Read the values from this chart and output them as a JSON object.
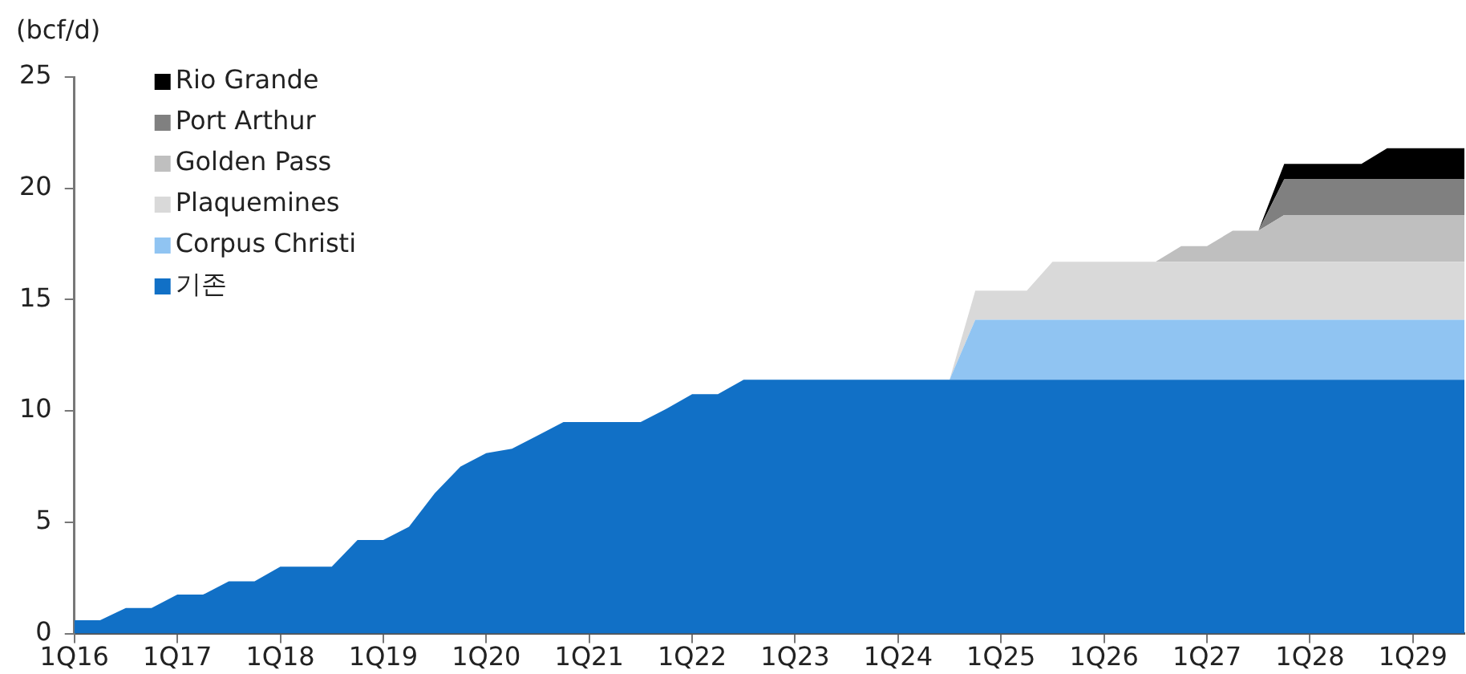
{
  "chart_data": {
    "type": "area",
    "ylabel": "(bcf/d)",
    "stacked": true,
    "legend": "top left",
    "grid": false,
    "ylim": [
      0,
      25
    ],
    "yticks": [
      0,
      5,
      10,
      15,
      20,
      25
    ],
    "categories": [
      "1Q16",
      null,
      null,
      null,
      "1Q17",
      null,
      null,
      null,
      "1Q18",
      null,
      null,
      null,
      "1Q19",
      null,
      null,
      null,
      "1Q20",
      null,
      null,
      null,
      "1Q21",
      null,
      null,
      null,
      "1Q22",
      null,
      null,
      null,
      "1Q23",
      null,
      null,
      null,
      "1Q24",
      null,
      null,
      null,
      "1Q25",
      null,
      null,
      null,
      "1Q26",
      null,
      null,
      null,
      "1Q27",
      null,
      null,
      null,
      "1Q28",
      null,
      null,
      null,
      "1Q29",
      null,
      null
    ],
    "series": [
      {
        "name": "기존",
        "color": "#1170c6",
        "values": [
          0.6,
          0.6,
          1.15,
          1.15,
          1.75,
          1.75,
          2.35,
          2.35,
          3.0,
          3.0,
          3.0,
          4.2,
          4.2,
          4.8,
          6.3,
          7.5,
          8.1,
          8.3,
          8.9,
          9.5,
          9.5,
          9.5,
          9.5,
          10.1,
          10.75,
          10.75,
          11.4,
          11.4,
          11.4,
          11.4,
          11.4,
          11.4,
          11.4,
          11.4,
          11.4,
          11.4,
          11.4,
          11.4,
          11.4,
          11.4,
          11.4,
          11.4,
          11.4,
          11.4,
          11.4,
          11.4,
          11.4,
          11.4,
          11.4,
          11.4,
          11.4,
          11.4,
          11.4,
          11.4,
          11.4
        ]
      },
      {
        "name": "Corpus Christi",
        "color": "#90c4f2",
        "values": [
          null,
          null,
          null,
          null,
          null,
          null,
          null,
          null,
          null,
          null,
          null,
          null,
          null,
          null,
          null,
          null,
          null,
          null,
          null,
          null,
          null,
          null,
          null,
          null,
          null,
          null,
          null,
          null,
          null,
          null,
          null,
          null,
          null,
          null,
          0,
          2.7,
          2.7,
          2.7,
          2.7,
          2.7,
          2.7,
          2.7,
          2.7,
          2.7,
          2.7,
          2.7,
          2.7,
          2.7,
          2.7,
          2.7,
          2.7,
          2.7,
          2.7,
          2.7,
          2.7
        ]
      },
      {
        "name": "Plaquemines",
        "color": "#d9d9d9",
        "values": [
          null,
          null,
          null,
          null,
          null,
          null,
          null,
          null,
          null,
          null,
          null,
          null,
          null,
          null,
          null,
          null,
          null,
          null,
          null,
          null,
          null,
          null,
          null,
          null,
          null,
          null,
          null,
          null,
          null,
          null,
          null,
          null,
          null,
          null,
          0,
          1.3,
          1.3,
          1.3,
          2.6,
          2.6,
          2.6,
          2.6,
          2.6,
          2.6,
          2.6,
          2.6,
          2.6,
          2.6,
          2.6,
          2.6,
          2.6,
          2.6,
          2.6,
          2.6,
          2.6
        ]
      },
      {
        "name": "Golden Pass",
        "color": "#bfbfbf",
        "values": [
          null,
          null,
          null,
          null,
          null,
          null,
          null,
          null,
          null,
          null,
          null,
          null,
          null,
          null,
          null,
          null,
          null,
          null,
          null,
          null,
          null,
          null,
          null,
          null,
          null,
          null,
          null,
          null,
          null,
          null,
          null,
          null,
          null,
          null,
          null,
          null,
          null,
          null,
          null,
          null,
          null,
          null,
          0,
          0.7,
          0.7,
          1.4,
          1.4,
          2.1,
          2.1,
          2.1,
          2.1,
          2.1,
          2.1,
          2.1,
          2.1
        ]
      },
      {
        "name": "Port Arthur",
        "color": "#808080",
        "values": [
          null,
          null,
          null,
          null,
          null,
          null,
          null,
          null,
          null,
          null,
          null,
          null,
          null,
          null,
          null,
          null,
          null,
          null,
          null,
          null,
          null,
          null,
          null,
          null,
          null,
          null,
          null,
          null,
          null,
          null,
          null,
          null,
          null,
          null,
          null,
          null,
          null,
          null,
          null,
          null,
          null,
          null,
          null,
          null,
          null,
          null,
          0,
          1.6,
          1.6,
          1.6,
          1.6,
          1.6,
          1.6,
          1.6,
          1.6
        ]
      },
      {
        "name": "Rio Grande",
        "color": "#000000",
        "values": [
          null,
          null,
          null,
          null,
          null,
          null,
          null,
          null,
          null,
          null,
          null,
          null,
          null,
          null,
          null,
          null,
          null,
          null,
          null,
          null,
          null,
          null,
          null,
          null,
          null,
          null,
          null,
          null,
          null,
          null,
          null,
          null,
          null,
          null,
          null,
          null,
          null,
          null,
          null,
          null,
          null,
          null,
          null,
          null,
          null,
          null,
          0,
          0.7,
          0.7,
          0.7,
          0.7,
          1.4,
          1.4,
          1.4,
          1.4
        ]
      }
    ]
  }
}
